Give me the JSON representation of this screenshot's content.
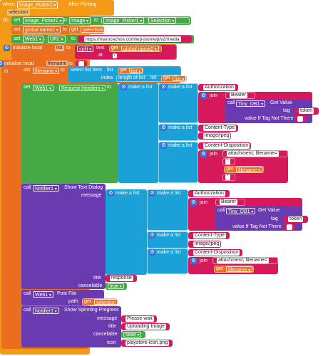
{
  "event": {
    "when": "when",
    "component": "Image_Picker1",
    "event_name": "After Picking",
    "param": "selection",
    "do": "do"
  },
  "s1": {
    "set": "set",
    "component": "Image_Picker1",
    "prop": "Image",
    "to": "to",
    "rhs_component": "Image_Picker1",
    "rhs_prop": "Selection"
  },
  "s2": {
    "set": "set",
    "var": "global name2",
    "to": "to",
    "get": "get",
    "val": "selection"
  },
  "s3": {
    "set": "set",
    "component": "Web1",
    "prop": "URL",
    "to": "to",
    "url": "https://marocechos.com/wp-json/wp/v2/media"
  },
  "loc1": {
    "init": "initialize local",
    "name": "list",
    "to": "to",
    "split": "split",
    "text_label": "text",
    "get": "get",
    "get_var": "global name2",
    "at_label": "at",
    "at_val": "/"
  },
  "loc2": {
    "init": "initialize local",
    "name": "filename",
    "to": "to",
    "in": "in"
  },
  "s4": {
    "set": "set",
    "var": "filename",
    "to": "to",
    "select": "select list item",
    "list_label": "list",
    "get": "get",
    "list_var": "list",
    "index_label": "index",
    "length": "length of list",
    "len_list": "list",
    "len_get": "get",
    "len_var": "list"
  },
  "s5": {
    "set": "set",
    "component": "Web1",
    "prop": "Request Headers",
    "to": "to",
    "make_list": "make a list",
    "h1_key": "Authorization",
    "join": "join",
    "bearer": "Bearer ",
    "call": "call",
    "db": "Tiny_DB1",
    "get_value": "Get Value",
    "tag_label": "tag",
    "tag_val": "token",
    "vitnt": "value If Tag Not There",
    "empty": " ",
    "h2_key": "Content-Type",
    "h2_val": "image/jpeg",
    "h3_key": "Content-Disposition",
    "h3_a": "attachment; filename=",
    "h3_b": "\"",
    "get": "get",
    "h3_var": "filename",
    "h3_c": "\""
  },
  "notifier": {
    "call": "call",
    "component": "Notifier1",
    "method": "Show Text Dialog",
    "message_label": "message",
    "make_list": "make a list",
    "h1_key": "Authorization",
    "join": "join",
    "bearer": "Bearer ",
    "call2": "call",
    "db": "Tiny_DB1",
    "get_value": "Get Value",
    "tag_label": "tag",
    "tag_val": "token",
    "vitnt": "value If Tag Not There",
    "empty": " ",
    "h2_key": "Content-Type",
    "h2_val": "image/jpeg",
    "h3_key": "Content-Disposition",
    "h3_a": "attachment; filename=",
    "get": "get",
    "h3_var": "filename",
    "title_label": "title",
    "title_val": "response",
    "cancelable_label": "cancelable",
    "cancelable_val": "true"
  },
  "post": {
    "call": "call",
    "component": "Web1",
    "method": "Post File",
    "path_label": "path",
    "get": "get",
    "path_var": "selection"
  },
  "spin": {
    "call": "call",
    "component": "Notifier1",
    "method": "Show Spinning Progress",
    "message_label": "message",
    "message_val": "Please wait",
    "title_label": "title",
    "title_val": "Uploading Image",
    "cancelable_label": "cancelable",
    "cancelable_val": "false",
    "icon_label": "icon",
    "icon_val": "playstore-icon.png"
  },
  "colors": {
    "event": "#f39a17",
    "component": "#47a945",
    "text": "#d7195c",
    "variable": "#eb6e1f",
    "list": "#1aa1d8",
    "call": "#6a3bb0"
  }
}
